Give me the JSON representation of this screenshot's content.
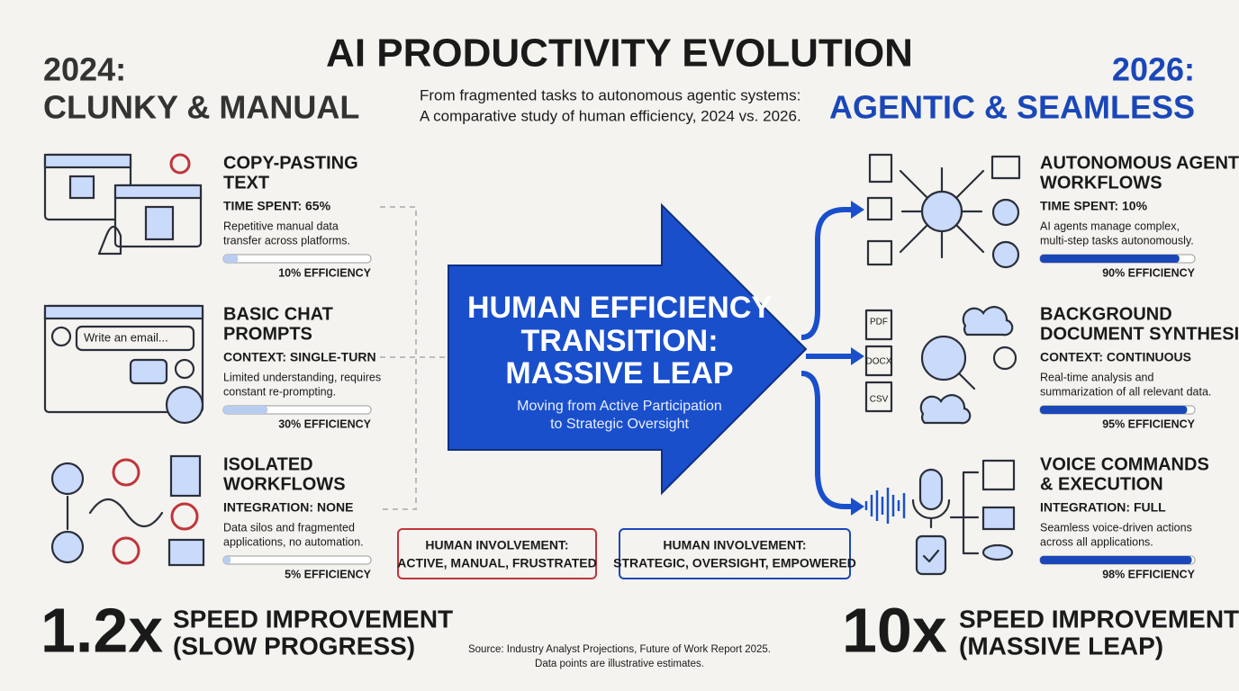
{
  "title": "AI PRODUCTIVITY EVOLUTION",
  "subtitle": [
    "From fragmented tasks to autonomous agentic systems:",
    "A comparative study of human efficiency, 2024 vs. 2026."
  ],
  "left": {
    "heading": [
      "2024:",
      "CLUNKY & MANUAL"
    ],
    "items": [
      {
        "title": [
          "COPY-PASTING",
          "TEXT"
        ],
        "metric": "TIME SPENT: 65%",
        "description": [
          "Repetitive manual data",
          "transfer across platforms."
        ],
        "efficiency": 10,
        "efficiency_label": "10% EFFICIENCY"
      },
      {
        "title": [
          "BASIC CHAT",
          "PROMPTS"
        ],
        "metric": "CONTEXT: SINGLE-TURN",
        "description": [
          "Limited understanding, requires",
          "constant re-prompting."
        ],
        "efficiency": 30,
        "efficiency_label": "30% EFFICIENCY"
      },
      {
        "title": [
          "ISOLATED",
          "WORKFLOWS"
        ],
        "metric": "INTEGRATION: NONE",
        "description": [
          "Data silos and fragmented",
          "applications, no automation."
        ],
        "efficiency": 5,
        "efficiency_label": "5% EFFICIENCY"
      }
    ],
    "involvement": [
      "HUMAN INVOLVEMENT:",
      "ACTIVE, MANUAL, FRUSTRATED"
    ],
    "speed": {
      "factor": "1.2x",
      "text": [
        "SPEED IMPROVEMENT",
        "(SLOW PROGRESS)"
      ]
    }
  },
  "right": {
    "heading": [
      "2026:",
      "AGENTIC & SEAMLESS"
    ],
    "items": [
      {
        "title": [
          "AUTONOMOUS AGENT",
          "WORKFLOWS"
        ],
        "metric": "TIME SPENT: 10%",
        "description": [
          "AI agents manage complex,",
          "multi-step tasks autonomously."
        ],
        "efficiency": 90,
        "efficiency_label": "90% EFFICIENCY"
      },
      {
        "title": [
          "BACKGROUND",
          "DOCUMENT SYNTHESIS"
        ],
        "metric": "CONTEXT: CONTINUOUS",
        "description": [
          "Real-time analysis and",
          "summarization of all relevant data."
        ],
        "efficiency": 95,
        "efficiency_label": "95% EFFICIENCY"
      },
      {
        "title": [
          "VOICE COMMANDS",
          "& EXECUTION"
        ],
        "metric": "INTEGRATION: FULL",
        "description": [
          "Seamless voice-driven actions",
          "across all applications."
        ],
        "efficiency": 98,
        "efficiency_label": "98% EFFICIENCY"
      }
    ],
    "involvement": [
      "HUMAN INVOLVEMENT:",
      "STRATEGIC, OVERSIGHT, EMPOWERED"
    ],
    "speed": {
      "factor": "10x",
      "text": [
        "SPEED IMPROVEMENT",
        "(MASSIVE LEAP)"
      ]
    }
  },
  "center": {
    "title": [
      "HUMAN EFFICIENCY",
      "TRANSITION:",
      "MASSIVE LEAP"
    ],
    "subtitle": [
      "Moving from Active Participation",
      "to Strategic Oversight"
    ]
  },
  "icon_labels": {
    "chat_input": "Write an email...",
    "files": [
      "PDF",
      "DOCX",
      "CSV"
    ]
  },
  "source": [
    "Source: Industry Analyst Projections, Future of Work Report 2025.",
    "Data points are illustrative estimates."
  ]
}
